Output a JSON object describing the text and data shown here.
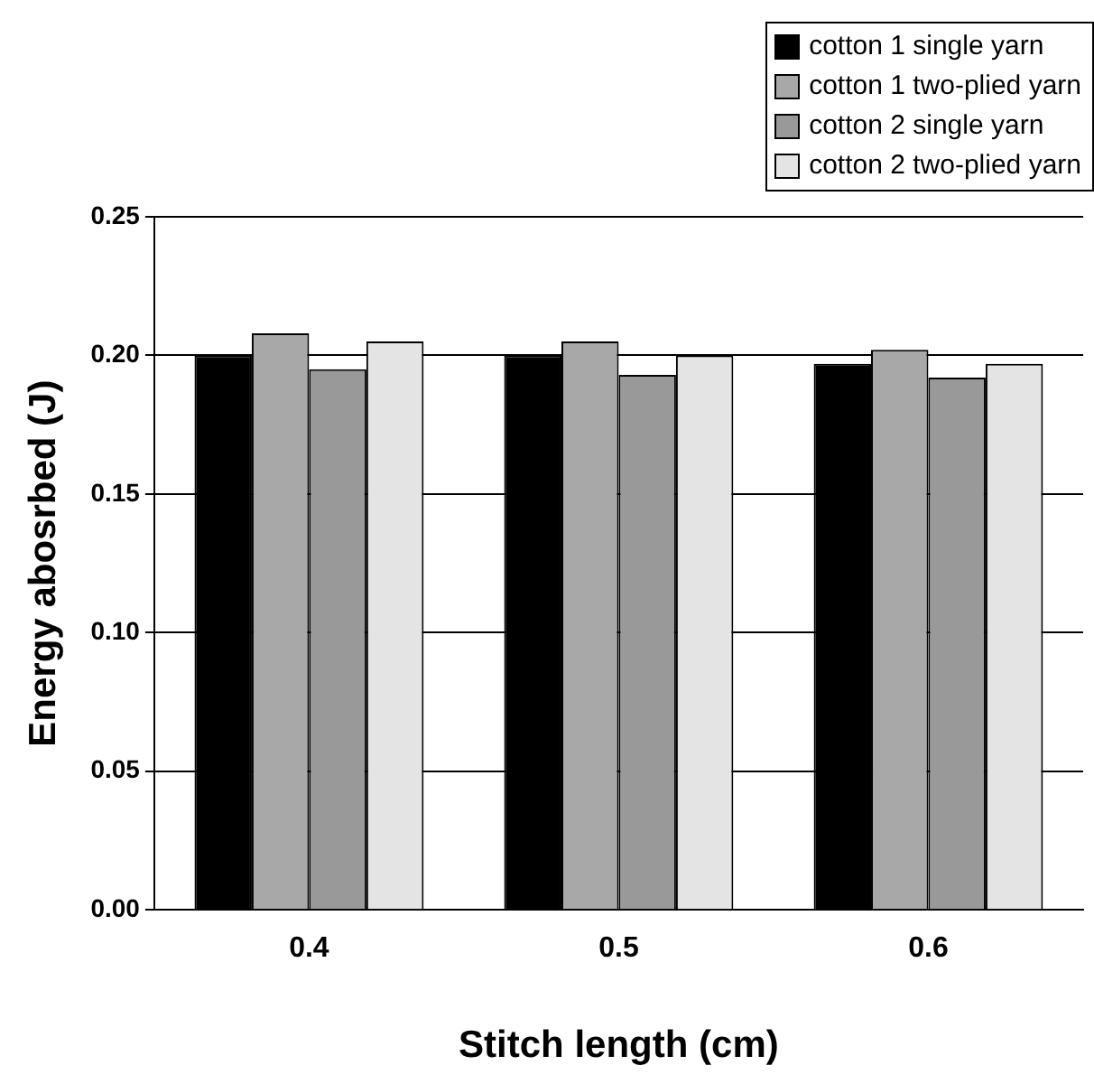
{
  "chart_data": {
    "type": "bar",
    "xlabel": "Stitch length (cm)",
    "ylabel": "Energy abosrbed (J)",
    "categories": [
      "0.4",
      "0.5",
      "0.6"
    ],
    "series": [
      {
        "name": "cotton 1 single yarn",
        "color": "#000000",
        "values": [
          0.2,
          0.2,
          0.197
        ]
      },
      {
        "name": "cotton 1 two-plied yarn",
        "color": "#a8a8a8",
        "values": [
          0.208,
          0.205,
          0.202
        ]
      },
      {
        "name": "cotton 2 single yarn",
        "color": "#999999",
        "values": [
          0.195,
          0.193,
          0.192
        ]
      },
      {
        "name": "cotton 2 two-plied yarn",
        "color": "#e4e4e4",
        "values": [
          0.205,
          0.2,
          0.197
        ]
      }
    ],
    "ylim": [
      0,
      0.25
    ],
    "yticks": [
      {
        "value": 0,
        "label": "0.00"
      },
      {
        "value": 0.05,
        "label": "0.05"
      },
      {
        "value": 0.1,
        "label": "0.10"
      },
      {
        "value": 0.15,
        "label": "0.15"
      },
      {
        "value": 0.2,
        "label": "0.20"
      },
      {
        "value": 0.25,
        "label": "0.25"
      }
    ],
    "grid": "y",
    "legend": "top right"
  }
}
